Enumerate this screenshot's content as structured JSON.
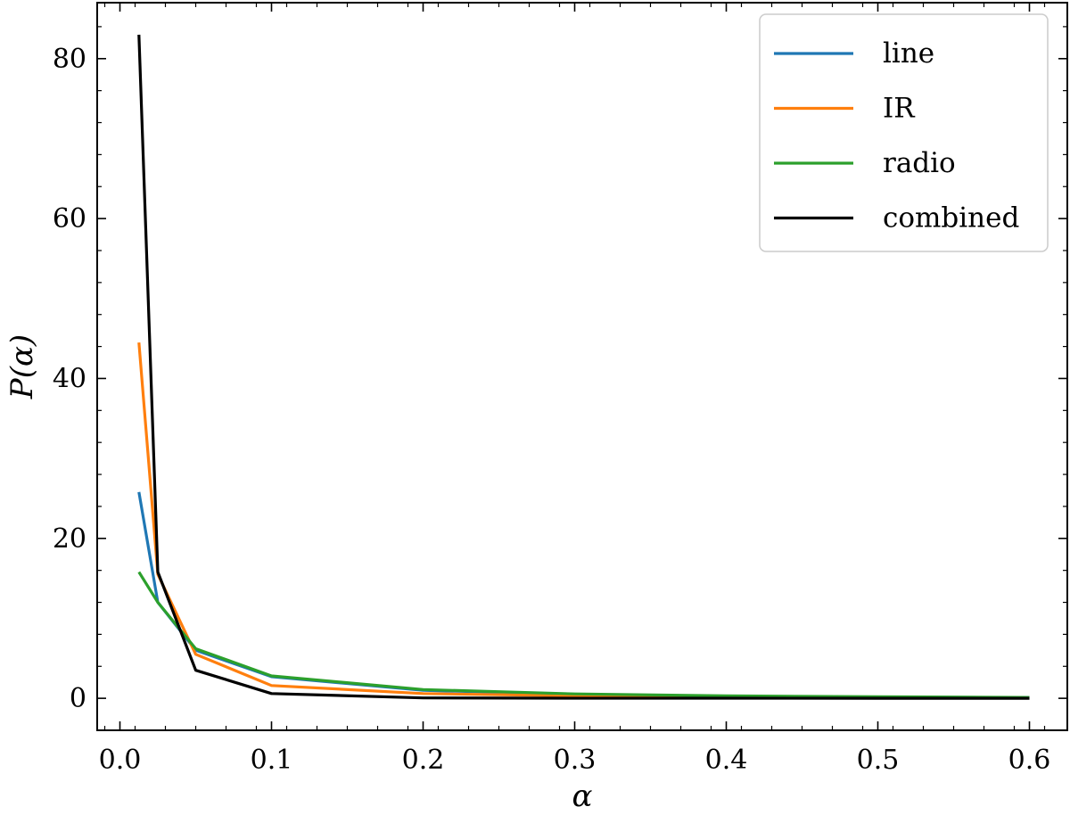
{
  "chart_data": {
    "type": "line",
    "xlabel": "α",
    "ylabel": "P(α)",
    "xlim": [
      -0.015,
      0.625
    ],
    "ylim": [
      -4,
      87
    ],
    "xticks": [
      0.0,
      0.1,
      0.2,
      0.3,
      0.4,
      0.5,
      0.6
    ],
    "xtick_labels": [
      "0.0",
      "0.1",
      "0.2",
      "0.3",
      "0.4",
      "0.5",
      "0.6"
    ],
    "yticks": [
      0,
      20,
      40,
      60,
      80
    ],
    "ytick_labels": [
      "0",
      "20",
      "40",
      "60",
      "80"
    ],
    "grid": false,
    "legend_position": "top-right",
    "x": [
      0.0125,
      0.025,
      0.05,
      0.1,
      0.2,
      0.3,
      0.4,
      0.5,
      0.6
    ],
    "series": [
      {
        "name": "line",
        "color": "#1f77b4",
        "values": [
          25.8,
          12.0,
          6.0,
          2.7,
          1.0,
          0.5,
          0.25,
          0.15,
          0.1
        ]
      },
      {
        "name": "IR",
        "color": "#ff7f0e",
        "values": [
          44.5,
          15.5,
          5.5,
          1.6,
          0.6,
          0.3,
          0.15,
          0.1,
          0.05
        ]
      },
      {
        "name": "radio",
        "color": "#2ca02c",
        "values": [
          15.8,
          12.0,
          6.2,
          2.8,
          1.1,
          0.55,
          0.3,
          0.2,
          0.1
        ]
      },
      {
        "name": "combined",
        "color": "#000000",
        "values": [
          83.0,
          15.8,
          3.5,
          0.6,
          0.05,
          0.02,
          0.01,
          0.0,
          0.0
        ]
      }
    ]
  }
}
